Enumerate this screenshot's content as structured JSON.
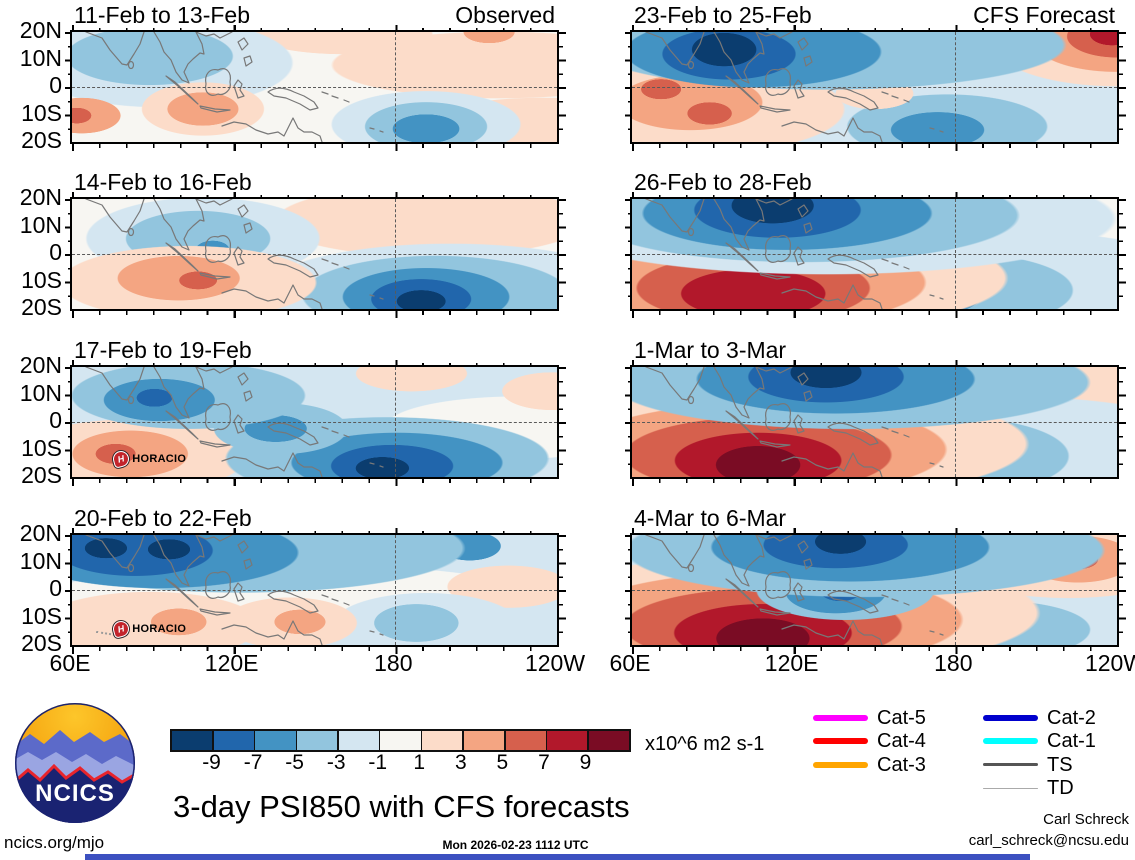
{
  "panels": [
    {
      "title": "11-Feb to 13-Feb",
      "corner_label": "Observed"
    },
    {
      "title": "23-Feb to 25-Feb",
      "corner_label": "CFS Forecast"
    },
    {
      "title": "14-Feb to 16-Feb"
    },
    {
      "title": "26-Feb to 28-Feb"
    },
    {
      "title": "17-Feb to 19-Feb",
      "storm": "HORACIO",
      "storm_symbol": "H"
    },
    {
      "title": "1-Mar to 3-Mar"
    },
    {
      "title": "20-Feb to 22-Feb",
      "storm": "HORACIO",
      "storm_symbol": "H"
    },
    {
      "title": "4-Mar to 6-Mar"
    }
  ],
  "axes": {
    "lat_labels": [
      "20N",
      "10N",
      "0",
      "10S",
      "20S"
    ],
    "lon_labels": [
      "60E",
      "120E",
      "180",
      "120W"
    ]
  },
  "colorbar": {
    "units": "x10^6 m2 s-1",
    "tick_labels": [
      "-9",
      "-7",
      "-5",
      "-3",
      "-1",
      "1",
      "3",
      "5",
      "7",
      "9"
    ],
    "colors": [
      "#0b3d6f",
      "#2166ac",
      "#4393c3",
      "#92c5de",
      "#d4e6f1",
      "#f7f6f2",
      "#fcdcc9",
      "#f4a582",
      "#d6604d",
      "#b2182b",
      "#7a0c24"
    ]
  },
  "legend": {
    "items": [
      {
        "label": "Cat-5",
        "color": "#ff00ff",
        "weight": 6
      },
      {
        "label": "Cat-4",
        "color": "#ff0000",
        "weight": 6
      },
      {
        "label": "Cat-3",
        "color": "#ffa500",
        "weight": 6
      },
      {
        "label": "Cat-2",
        "color": "#0000cd",
        "weight": 6
      },
      {
        "label": "Cat-1",
        "color": "#00ffff",
        "weight": 6
      },
      {
        "label": "TS",
        "color": "#555555",
        "weight": 3
      },
      {
        "label": "TD",
        "color": "#aaaaaa",
        "weight": 1.5
      }
    ]
  },
  "footer": {
    "site": "ncics.org/mjo",
    "title": "3-day PSI850 with CFS forecasts",
    "timestamp": "Mon 2026-02-23 1112 UTC",
    "credit_name": "Carl Schreck",
    "credit_email": "carl_schreck@ncsu.edu",
    "logo_text": "NCICS"
  },
  "chart_data": {
    "type": "heatmap",
    "title": "3-day PSI850 with CFS forecasts",
    "variable": "850 hPa streamfunction anomaly (PSI850)",
    "units": "x10^6 m2 s-1",
    "colorbar_levels": [
      -9,
      -7,
      -5,
      -3,
      -1,
      1,
      3,
      5,
      7,
      9
    ],
    "lon_range": [
      "60E",
      "120W"
    ],
    "lat_range": [
      "20S",
      "20N"
    ],
    "gridlines": {
      "equator_dashed": true,
      "dateline_dashed": true
    },
    "panels": [
      {
        "title": "11-Feb to 13-Feb",
        "kind": "Observed",
        "features": "weak field; light blue over India/Bay of Bengal; orange cells near 70E-120E 8S; blue cell -3 to -5 near 175E-170W 12S; light orange band central Pacific near equator"
      },
      {
        "title": "23-Feb to 25-Feb",
        "kind": "CFS Forecast",
        "features": "intense -9 center near 90E 10-20N with -3 band across north tropics; +7 corner NE Pacific 20N; +5 cells near 63E 3S and 85E 12S; -3 SW Pacific near 150E-170E 10-20S"
      },
      {
        "title": "14-Feb to 16-Feb",
        "kind": "Observed",
        "features": "+5 core near 78E 8S in orange band 0-15S; light blue S Asia; -9 cell near 175E 15S with broad -3/-5 halo; light orange N central Pacific"
      },
      {
        "title": "26-Feb to 28-Feb",
        "kind": "CFS Forecast",
        "features": "-9 center 100E-140E 10-20N; +7 band 10-20S from 80E-140E; -3 SW Pacific 140E-180; faint orange NE Pacific"
      },
      {
        "title": "17-Feb to 19-Feb",
        "kind": "Observed",
        "features": "-3/-5 band N Indian Ocean, core near 90E 5N; +5 SW Indian Ocean near 75E 15S with TC Horacio; -9 band 150E-175W 12-20S"
      },
      {
        "title": "1-Mar to 3-Mar",
        "kind": "CFS Forecast",
        "features": "-9 center near 140E 12-20N; very strong +9 core 110E-130E 15-20S; -3 SW Pacific; faint orange NE Pacific"
      },
      {
        "title": "20-Feb to 22-Feb",
        "kind": "Observed",
        "features": "-9 cells near 65E and 95E 15-20N within -3/-5 band along N edge; +3 SW Indian Ocean with TC Horacio near 80E 18S; +3 cell near 125E 12S; weak -1/-3 SW Pacific"
      },
      {
        "title": "4-Mar to 6-Mar",
        "kind": "CFS Forecast",
        "features": "-3/-7 band N tropics, core near 145E 15N; +9 maroon core 115E-140E 15-20S; -5 over Maritime Continent near 120E 2S; +5 cell near 125W 10N"
      }
    ],
    "storm_tracks": [
      {
        "name": "HORACIO",
        "panels": [
          "17-Feb to 19-Feb",
          "20-Feb to 22-Feb"
        ],
        "approx_position": "78E 16S"
      }
    ]
  }
}
